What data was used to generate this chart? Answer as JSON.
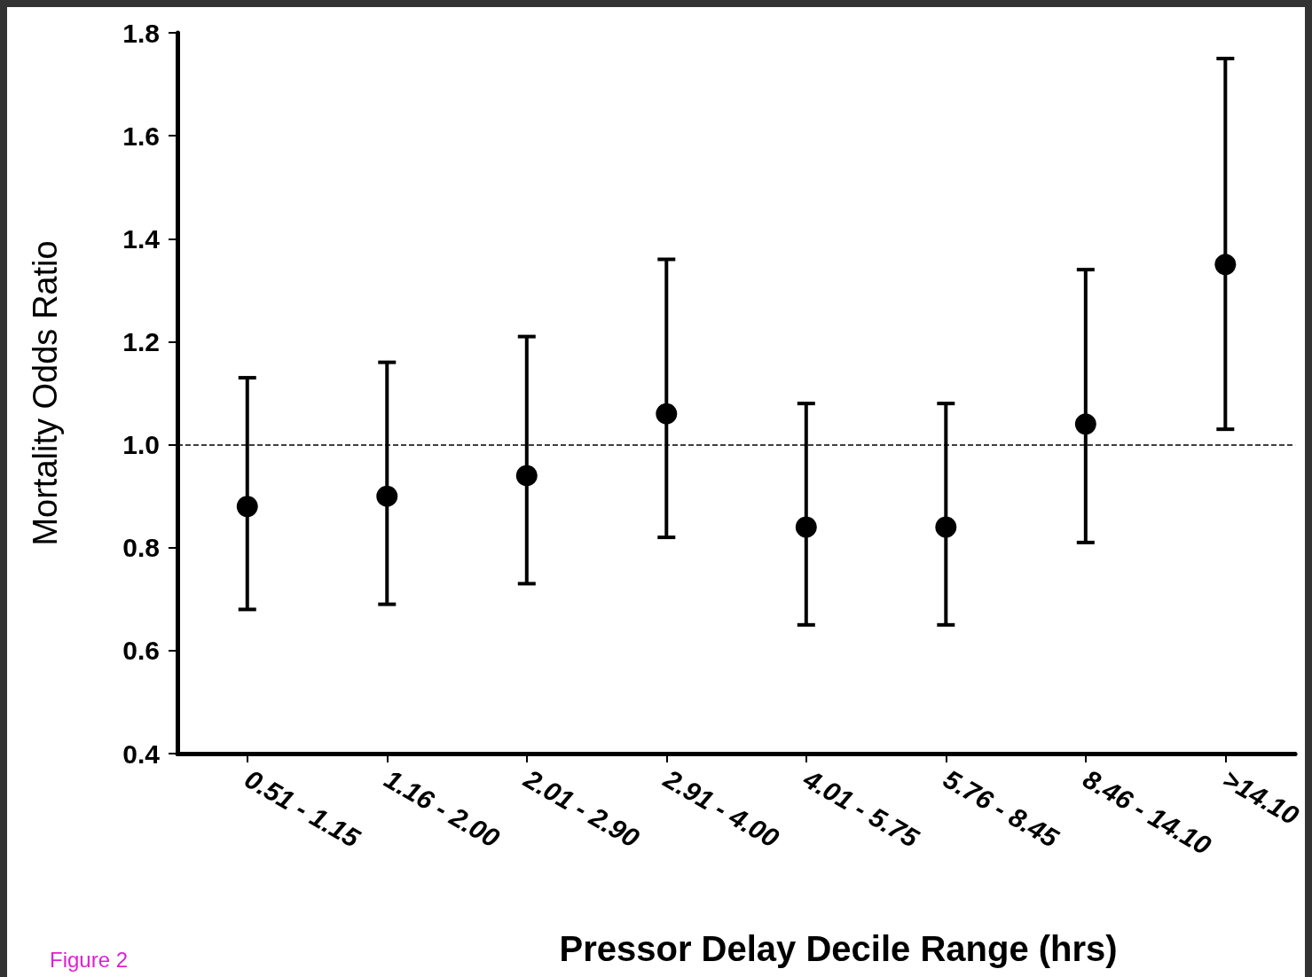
{
  "chart_data": {
    "type": "scatter",
    "xlabel": "Pressor Delay Decile Range (hrs)",
    "ylabel": "Mortality Odds Ratio",
    "categories": [
      "0.51 - 1.15",
      "1.16 - 2.00",
      "2.01 - 2.90",
      "2.91 - 4.00",
      "4.01 - 5.75",
      "5.76 - 8.45",
      "8.46 - 14.10",
      ">14.10"
    ],
    "series": [
      {
        "color": "#000000",
        "values": [
          0.88,
          0.9,
          0.94,
          1.06,
          0.84,
          0.84,
          1.04,
          1.35
        ],
        "errors": [
          [
            0.68,
            1.13
          ],
          [
            0.69,
            1.16
          ],
          [
            0.73,
            1.21
          ],
          [
            0.82,
            1.36
          ],
          [
            0.65,
            1.08
          ],
          [
            0.65,
            1.08
          ],
          [
            0.81,
            1.34
          ],
          [
            1.03,
            1.75
          ]
        ]
      }
    ],
    "ylim": [
      0.4,
      1.8
    ],
    "yticks": [
      0.4,
      0.6,
      0.8,
      {
        "value": 1.0,
        "label": "1.0"
      },
      1.2,
      1.4,
      1.6,
      1.8
    ],
    "ref_lines": [
      {
        "axis": "y",
        "value": 1.0,
        "line_style": "dashed",
        "color": "#000000"
      }
    ],
    "annotations": [
      "Figure 2"
    ],
    "marker": "circle"
  }
}
